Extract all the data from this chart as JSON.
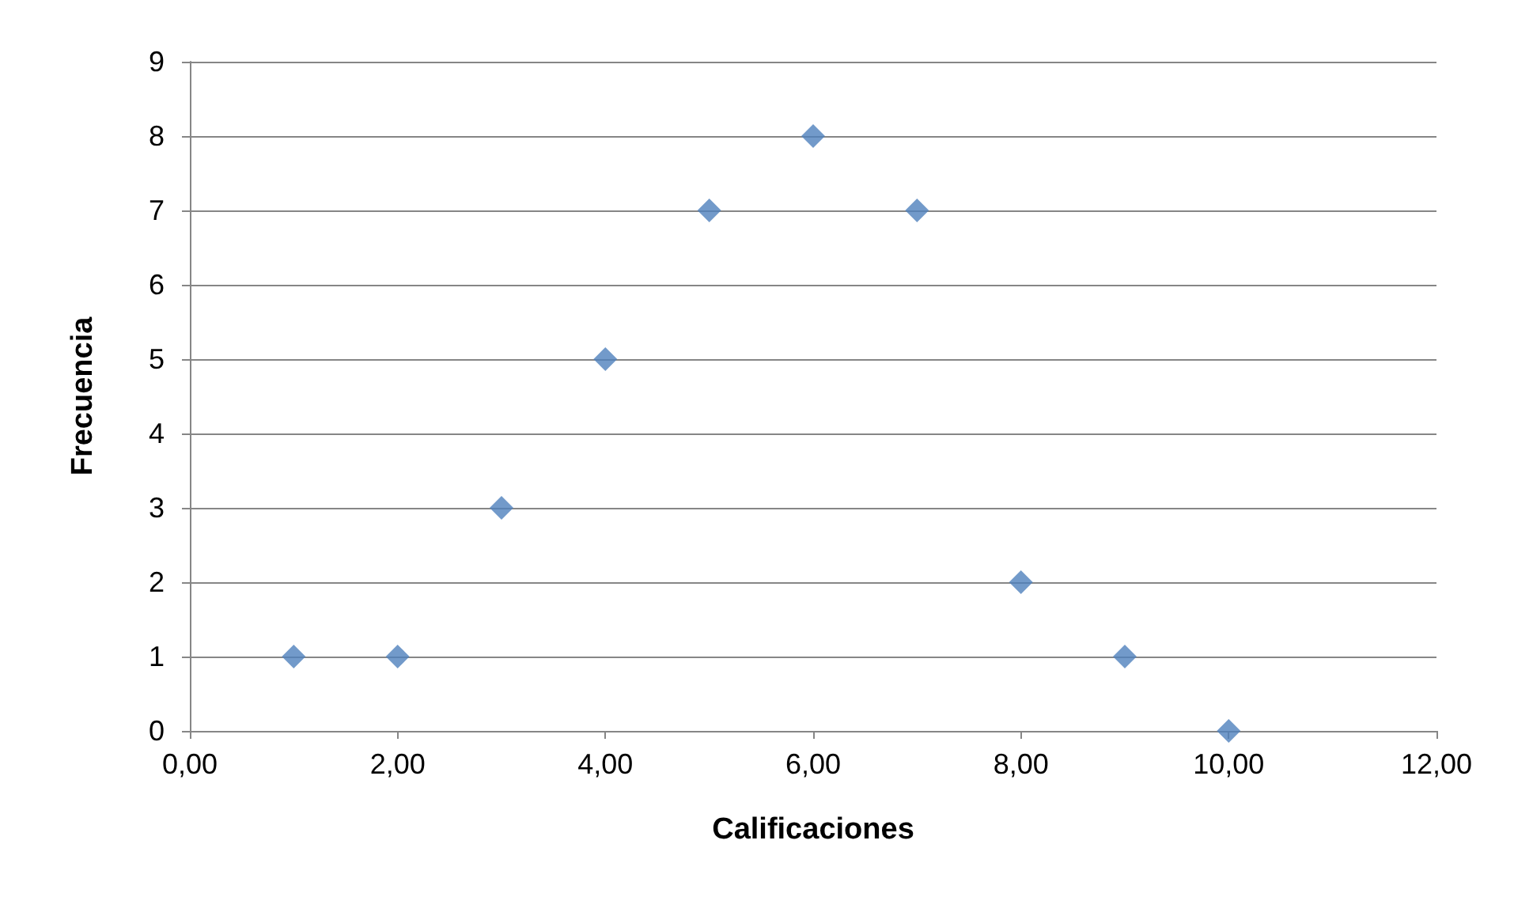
{
  "chart_data": {
    "type": "scatter",
    "xlabel": "Calificaciones",
    "ylabel": "Frecuencia",
    "x": [
      1,
      2,
      3,
      4,
      5,
      6,
      7,
      8,
      9,
      10
    ],
    "series": [
      {
        "color": "#4f81bd",
        "values": [
          1,
          1,
          3,
          5,
          7,
          8,
          7,
          2,
          1,
          0
        ]
      }
    ],
    "xlim": [
      0,
      12
    ],
    "xticks": [
      {
        "value": 0,
        "label": "0,00"
      },
      {
        "value": 2,
        "label": "2,00"
      },
      {
        "value": 4,
        "label": "4,00"
      },
      {
        "value": 6,
        "label": "6,00"
      },
      {
        "value": 8,
        "label": "8,00"
      },
      {
        "value": 10,
        "label": "10,00"
      },
      {
        "value": 12,
        "label": "12,00"
      }
    ],
    "ylim": [
      0,
      9
    ],
    "yticks": [
      0,
      1,
      2,
      3,
      4,
      5,
      6,
      7,
      8,
      9
    ],
    "grid": "y",
    "marker": "diamond"
  }
}
